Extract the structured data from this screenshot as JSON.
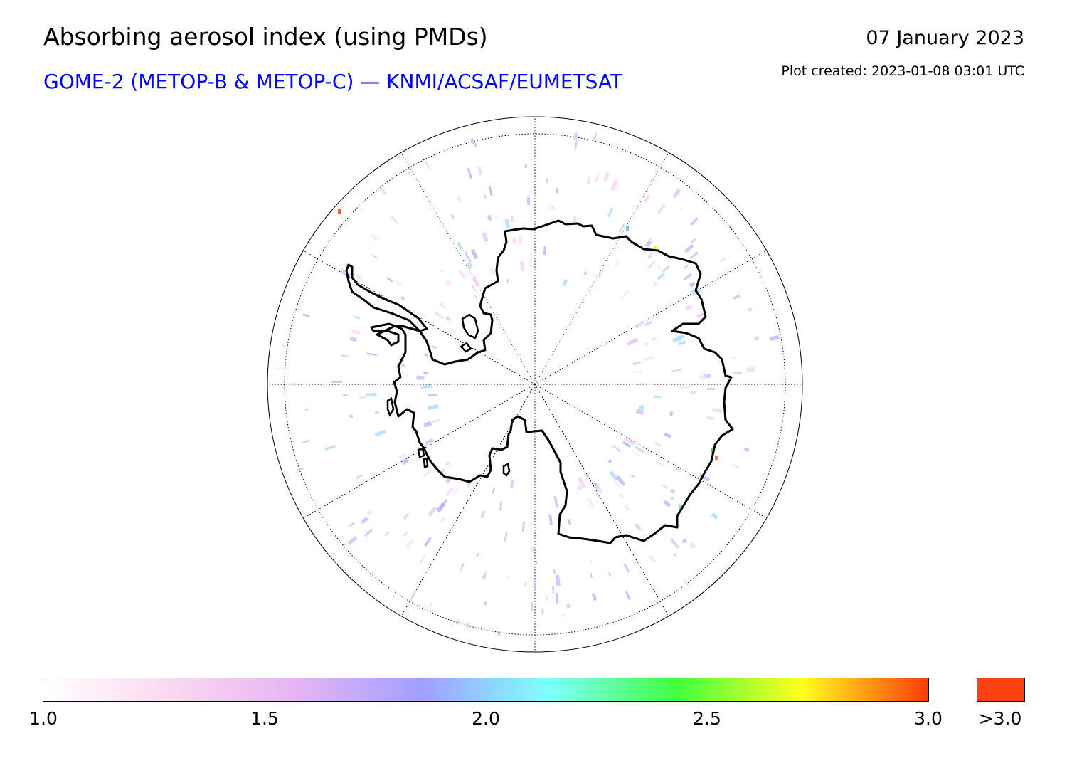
{
  "header": {
    "title": "Absorbing aerosol index (using PMDs)",
    "subtitle": "GOME-2 (METOP-B & METOP-C) — KNMI/ACSAF/EUMETSAT",
    "date": "07 January 2023",
    "plot_created": "Plot created: 2023-01-08 03:01 UTC"
  },
  "map": {
    "projection": "south-polar-stereographic",
    "region": "Antarctica",
    "meridian_spacing_deg": 30,
    "latitude_circles": "dotted",
    "coastline_color": "#000000"
  },
  "colorbar": {
    "min": 1.0,
    "max": 3.0,
    "ticks": [
      "1.0",
      "1.5",
      "2.0",
      "2.5",
      "3.0"
    ],
    "over_label": ">3.0",
    "over_color": "#ff4010",
    "gradient_stops": [
      "#ffffff",
      "#fbd8f0",
      "#e6b4f5",
      "#a0a0ff",
      "#80ffff",
      "#40ff40",
      "#ffff20",
      "#ff3c0a"
    ]
  }
}
